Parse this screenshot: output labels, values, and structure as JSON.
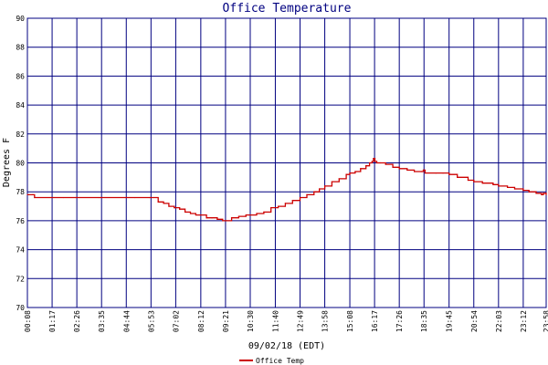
{
  "chart_data": {
    "type": "line",
    "title": "Office Temperature",
    "xlabel": "09/02/18 (EDT)",
    "ylabel": "Degrees F",
    "ylim": [
      70,
      90
    ],
    "yticks": [
      70,
      72,
      74,
      76,
      78,
      80,
      82,
      84,
      86,
      88,
      90
    ],
    "xlim": [
      0,
      1448
    ],
    "xtick_labels": [
      {
        "x": 0,
        "label": "00:08"
      },
      {
        "x": 69,
        "label": "01:17"
      },
      {
        "x": 138,
        "label": "02:26"
      },
      {
        "x": 207,
        "label": "03:35"
      },
      {
        "x": 276,
        "label": "04:44"
      },
      {
        "x": 345,
        "label": "05:53"
      },
      {
        "x": 414,
        "label": "07:02"
      },
      {
        "x": 484,
        "label": "08:12"
      },
      {
        "x": 553,
        "label": "09:21"
      },
      {
        "x": 622,
        "label": "10:30"
      },
      {
        "x": 692,
        "label": "11:40"
      },
      {
        "x": 761,
        "label": "12:49"
      },
      {
        "x": 830,
        "label": "13:58"
      },
      {
        "x": 900,
        "label": "15:08"
      },
      {
        "x": 969,
        "label": "16:17"
      },
      {
        "x": 1038,
        "label": "17:26"
      },
      {
        "x": 1107,
        "label": "18:35"
      },
      {
        "x": 1177,
        "label": "19:45"
      },
      {
        "x": 1246,
        "label": "20:54"
      },
      {
        "x": 1315,
        "label": "22:03"
      },
      {
        "x": 1384,
        "label": "23:12"
      },
      {
        "x": 1448,
        "label": "23:58"
      }
    ],
    "grid": true,
    "legend_position": "bottom-center",
    "colors": {
      "series": "#cc0000",
      "grid": "#000080",
      "title": "#000080"
    },
    "series": [
      {
        "name": "Office Temp",
        "x": [
          0,
          15,
          20,
          100,
          200,
          300,
          340,
          350,
          365,
          380,
          395,
          410,
          425,
          440,
          455,
          470,
          484,
          500,
          515,
          530,
          545,
          553,
          570,
          590,
          610,
          622,
          640,
          660,
          680,
          700,
          720,
          740,
          761,
          780,
          800,
          815,
          830,
          850,
          870,
          890,
          900,
          915,
          930,
          945,
          955,
          962,
          966,
          970,
          975,
          985,
          1000,
          1020,
          1038,
          1060,
          1080,
          1100,
          1105,
          1110,
          1140,
          1160,
          1177,
          1200,
          1230,
          1246,
          1270,
          1300,
          1315,
          1340,
          1360,
          1384,
          1400,
          1420,
          1435,
          1440,
          1448
        ],
        "y": [
          77.8,
          77.8,
          77.6,
          77.6,
          77.6,
          77.6,
          77.6,
          77.6,
          77.3,
          77.2,
          77.0,
          76.9,
          76.8,
          76.6,
          76.5,
          76.4,
          76.4,
          76.2,
          76.2,
          76.1,
          76.0,
          76.0,
          76.2,
          76.3,
          76.4,
          76.4,
          76.5,
          76.6,
          76.9,
          77.0,
          77.2,
          77.4,
          77.6,
          77.8,
          78.0,
          78.2,
          78.4,
          78.7,
          78.9,
          79.2,
          79.3,
          79.4,
          79.6,
          79.8,
          80.0,
          80.1,
          80.3,
          80.1,
          80.0,
          80.0,
          79.9,
          79.7,
          79.6,
          79.5,
          79.4,
          79.4,
          79.5,
          79.3,
          79.3,
          79.3,
          79.2,
          79.0,
          78.8,
          78.7,
          78.6,
          78.5,
          78.4,
          78.3,
          78.2,
          78.1,
          78.0,
          77.9,
          77.8,
          77.9,
          77.8
        ]
      }
    ]
  }
}
